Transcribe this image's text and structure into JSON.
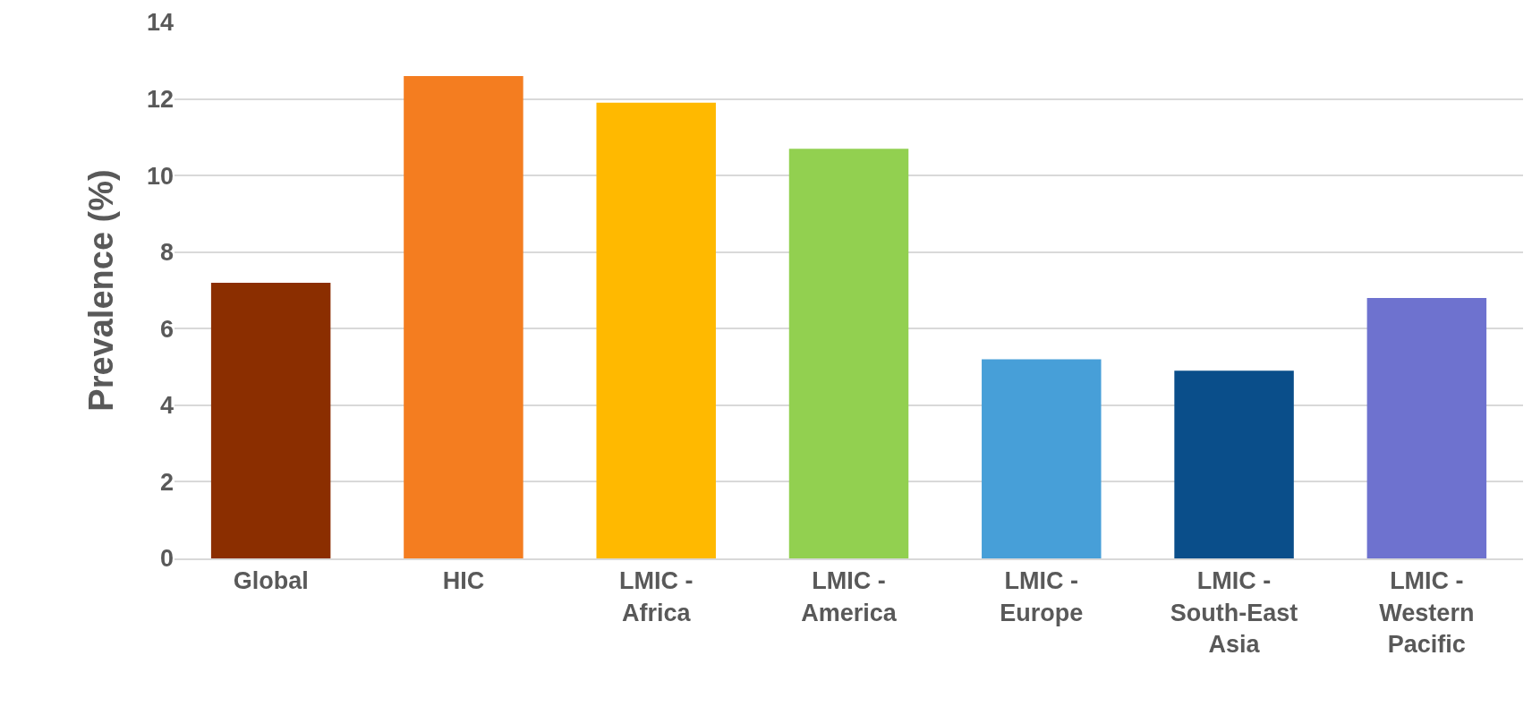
{
  "chart_data": {
    "type": "bar",
    "ylabel": "Prevalence (%)",
    "categories": [
      "Global",
      "HIC",
      "LMIC - Africa",
      "LMIC - America",
      "LMIC - Europe",
      "LMIC - South-East Asia",
      "LMIC - Western Pacific"
    ],
    "values": [
      7.2,
      12.6,
      11.9,
      10.7,
      5.2,
      4.9,
      6.8
    ],
    "colors": [
      "#8b2e00",
      "#f47d20",
      "#ffb900",
      "#92d050",
      "#479fd8",
      "#0a4e8a",
      "#6e72cf"
    ],
    "ylim": [
      0,
      14
    ],
    "yticks": [
      0,
      2,
      4,
      6,
      8,
      10,
      12,
      14
    ],
    "grid": "y",
    "legend": false
  }
}
